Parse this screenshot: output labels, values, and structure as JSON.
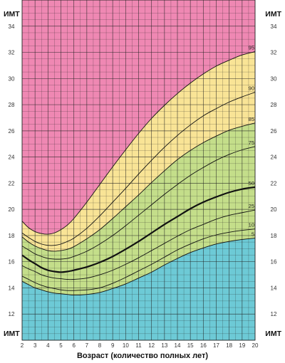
{
  "chart_data": {
    "type": "line",
    "title": "",
    "xlabel": "Возраст (количество полных лет)",
    "ylabel": "ИМТ",
    "xlim": [
      2,
      20
    ],
    "ylim": [
      10,
      36
    ],
    "x_ticks": [
      "2",
      "3",
      "4",
      "5",
      "6",
      "7",
      "8",
      "9",
      "10",
      "11",
      "12",
      "13",
      "14",
      "15",
      "16",
      "17",
      "18",
      "19",
      "20"
    ],
    "y_ticks": [
      "12",
      "14",
      "16",
      "18",
      "20",
      "22",
      "24",
      "26",
      "28",
      "30",
      "32",
      "34"
    ],
    "grid": true,
    "x": [
      2,
      2.5,
      3,
      3.5,
      4,
      4.5,
      5,
      5.5,
      6,
      7,
      8,
      9,
      10,
      11,
      12,
      13,
      14,
      15,
      16,
      17,
      18,
      19,
      20
    ],
    "series": [
      {
        "name": "5",
        "values": [
          14.5,
          14.25,
          14.0,
          13.85,
          13.7,
          13.6,
          13.55,
          13.5,
          13.45,
          13.5,
          13.65,
          13.95,
          14.3,
          14.75,
          15.2,
          15.75,
          16.25,
          16.7,
          17.05,
          17.35,
          17.55,
          17.7,
          17.8
        ]
      },
      {
        "name": "10",
        "values": [
          14.9,
          14.65,
          14.4,
          14.2,
          14.05,
          13.95,
          13.85,
          13.8,
          13.8,
          13.85,
          14.0,
          14.35,
          14.8,
          15.3,
          15.8,
          16.35,
          16.9,
          17.35,
          17.75,
          18.05,
          18.25,
          18.4,
          18.5
        ]
      },
      {
        "name": "25",
        "values": [
          15.7,
          15.45,
          15.25,
          15.0,
          14.85,
          14.75,
          14.7,
          14.65,
          14.65,
          14.75,
          15.0,
          15.35,
          15.8,
          16.3,
          16.85,
          17.4,
          17.95,
          18.45,
          18.85,
          19.25,
          19.55,
          19.75,
          19.95
        ]
      },
      {
        "name": "50",
        "values": [
          16.5,
          16.15,
          15.85,
          15.55,
          15.35,
          15.25,
          15.2,
          15.25,
          15.35,
          15.6,
          15.95,
          16.4,
          16.95,
          17.55,
          18.2,
          18.85,
          19.45,
          20.05,
          20.55,
          20.95,
          21.3,
          21.55,
          21.7
        ]
      },
      {
        "name": "75",
        "values": [
          17.2,
          16.9,
          16.6,
          16.4,
          16.25,
          16.2,
          16.2,
          16.25,
          16.4,
          16.8,
          17.35,
          18.0,
          18.75,
          19.55,
          20.35,
          21.15,
          21.9,
          22.6,
          23.2,
          23.75,
          24.2,
          24.55,
          24.8
        ]
      },
      {
        "name": "85",
        "values": [
          17.9,
          17.5,
          17.2,
          17.0,
          16.85,
          16.8,
          16.85,
          16.95,
          17.15,
          17.75,
          18.45,
          19.3,
          20.2,
          21.1,
          22.05,
          22.95,
          23.8,
          24.5,
          25.1,
          25.6,
          26.05,
          26.35,
          26.6
        ]
      },
      {
        "name": "90",
        "values": [
          18.2,
          17.85,
          17.55,
          17.35,
          17.25,
          17.25,
          17.35,
          17.55,
          17.8,
          18.55,
          19.5,
          20.55,
          21.6,
          22.7,
          23.75,
          24.75,
          25.65,
          26.45,
          27.15,
          27.7,
          28.2,
          28.6,
          28.95
        ]
      },
      {
        "name": "95",
        "values": [
          19.1,
          18.6,
          18.3,
          18.15,
          18.1,
          18.2,
          18.45,
          18.8,
          19.3,
          20.55,
          21.9,
          23.25,
          24.55,
          25.8,
          26.95,
          27.95,
          28.85,
          29.65,
          30.35,
          30.95,
          31.4,
          31.8,
          32.05
        ]
      }
    ],
    "colors": {
      "underweight": "#6dcad6",
      "healthy": "#c4de8a",
      "overweight": "#f9e496",
      "obese": "#ef88b3",
      "grid": "#222222",
      "curve": "#111111"
    }
  }
}
